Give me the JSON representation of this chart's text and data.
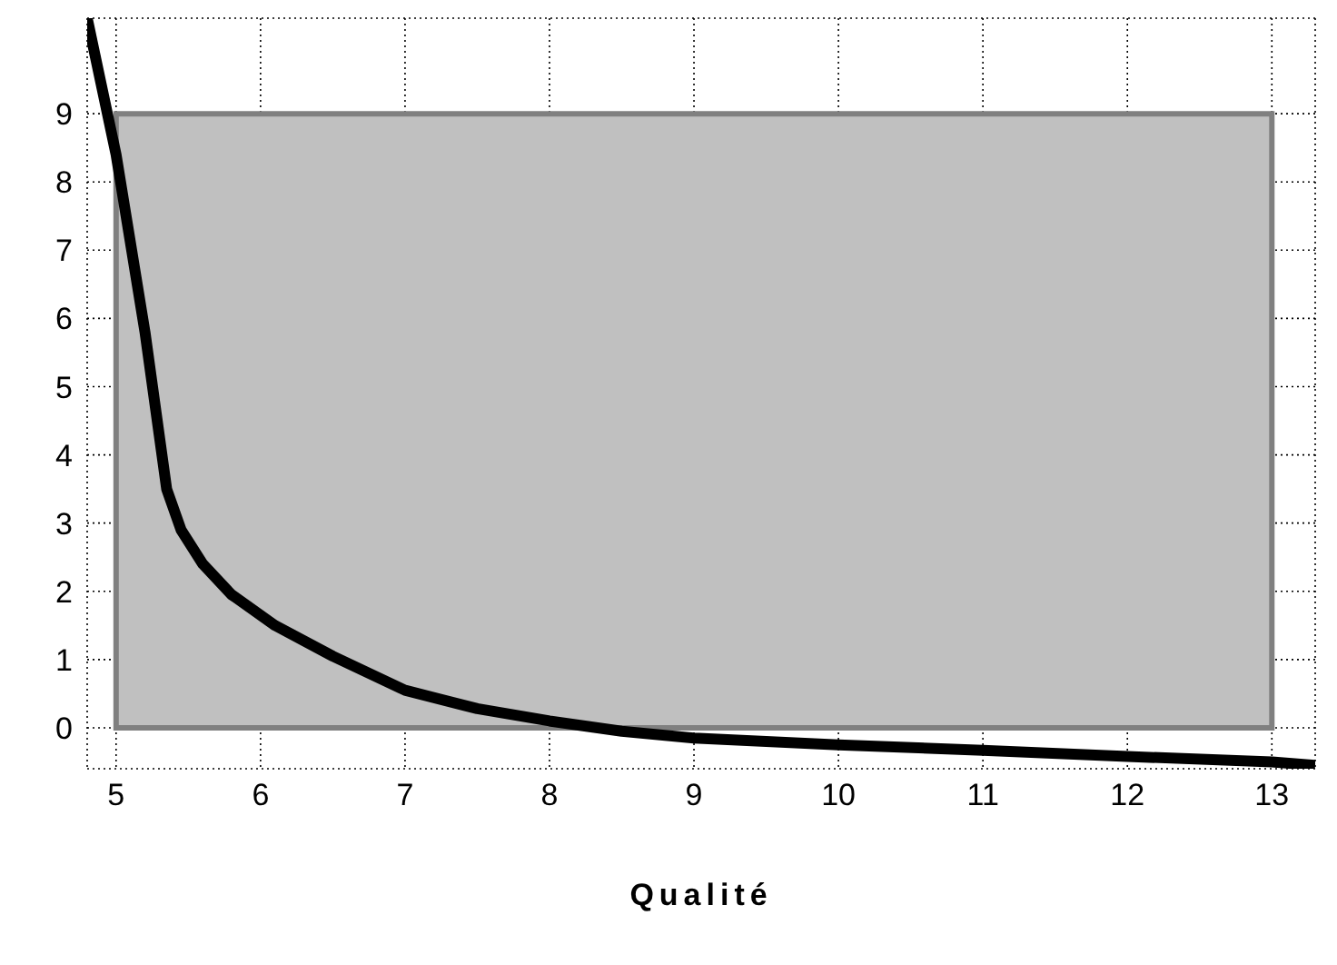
{
  "chart_data": {
    "type": "line",
    "xlabel": "Qualité",
    "x": [
      4.8,
      5,
      5.2,
      5.35,
      5.45,
      5.6,
      5.8,
      6.1,
      6.5,
      7,
      7.5,
      8,
      8.5,
      9,
      10,
      11,
      12,
      13,
      13.3
    ],
    "series": [
      {
        "color": "#000000",
        "values": [
          10.4,
          8.4,
          5.8,
          3.5,
          2.9,
          2.4,
          1.95,
          1.5,
          1.05,
          0.55,
          0.28,
          0.1,
          -0.05,
          -0.15,
          -0.25,
          -0.33,
          -0.42,
          -0.5,
          -0.55
        ]
      }
    ],
    "xlim": [
      4.8,
      13.3
    ],
    "ylim": [
      -0.6,
      10.4
    ],
    "xticks": [
      5,
      6,
      7,
      8,
      9,
      10,
      11,
      12,
      13
    ],
    "yticks": [
      0,
      1,
      2,
      3,
      4,
      5,
      6,
      7,
      8,
      9
    ],
    "bands": [
      {
        "axis": "y",
        "from": 0,
        "to": 9,
        "color": "#c0c0c0"
      }
    ],
    "grid": true,
    "marker": "none",
    "line_style": "solid",
    "legend": false
  }
}
